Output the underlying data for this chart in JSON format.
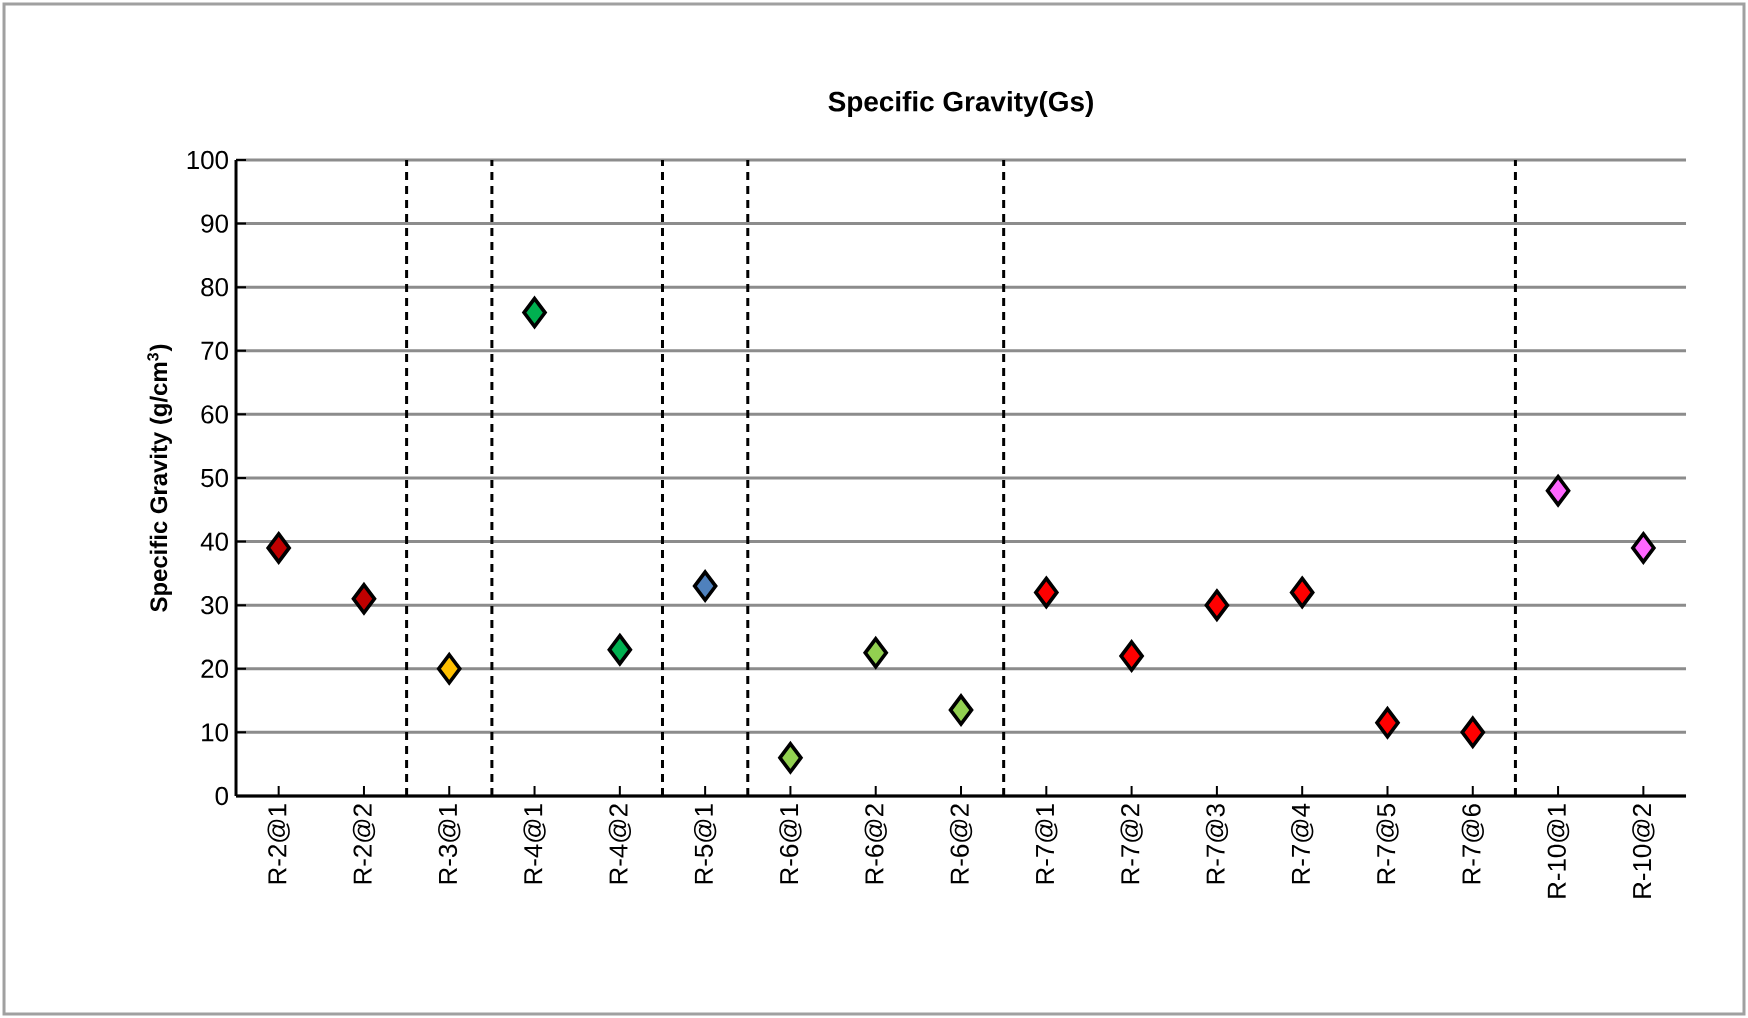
{
  "chart_data": {
    "type": "scatter",
    "title": "Specific Gravity(Gs)",
    "ylabel": "Specific Gravity (g/cm$^{3}$)",
    "categories": [
      "R-2@1",
      "R-2@2",
      "R-3@1",
      "R-4@1",
      "R-4@2",
      "R-5@1",
      "R-6@1",
      "R-6@2",
      "R-6@2",
      "R-7@1",
      "R-7@2",
      "R-7@3",
      "R-7@4",
      "R-7@5",
      "R-7@6",
      "R-10@1",
      "R-10@2"
    ],
    "values": [
      39,
      31,
      20,
      76,
      23,
      33,
      6,
      22.5,
      13.5,
      32,
      22,
      30,
      32,
      11.5,
      10,
      48,
      39
    ],
    "colors": [
      "#c00000",
      "#c00000",
      "#ffc000",
      "#00b050",
      "#00b050",
      "#4f81bd",
      "#92d050",
      "#92d050",
      "#92d050",
      "#ff0000",
      "#ff0000",
      "#ff0000",
      "#ff0000",
      "#ff0000",
      "#ff0000",
      "#ff66ff",
      "#ff66ff"
    ],
    "ylim": [
      0,
      100
    ],
    "yticks": [
      0,
      10,
      20,
      30,
      40,
      50,
      60,
      70,
      80,
      90,
      100
    ],
    "grid": "y",
    "marker": "diamond"
  }
}
